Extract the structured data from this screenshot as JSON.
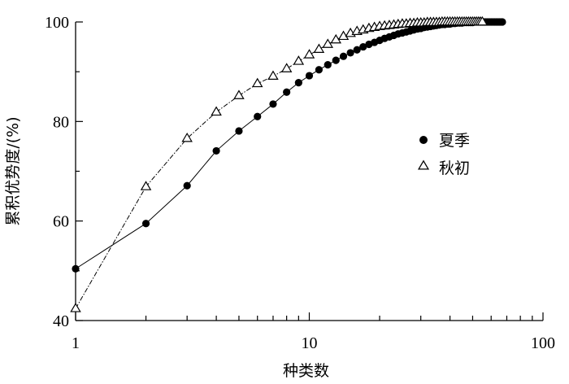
{
  "chart_data": {
    "type": "line",
    "xlabel": "种类数",
    "ylabel": "累积优势度/(%)",
    "xscale": "log",
    "xlim": [
      1,
      100
    ],
    "ylim": [
      40,
      100
    ],
    "x_ticks": [
      1,
      10,
      100
    ],
    "y_ticks": [
      40,
      60,
      80,
      100
    ],
    "grid": false,
    "legend_position": "right",
    "series": [
      {
        "name": "夏季",
        "marker": "filled-circle",
        "line_style": "solid",
        "color": "#000000",
        "x": [
          1,
          2,
          3,
          4,
          5,
          6,
          7,
          8,
          9,
          10,
          11,
          12,
          13,
          14,
          15,
          16,
          17,
          18,
          19,
          20,
          21,
          22,
          23,
          24,
          25,
          26,
          27,
          28,
          29,
          30,
          31,
          32,
          33,
          34,
          35,
          36,
          37,
          38,
          39,
          40,
          41,
          42,
          43,
          44,
          45,
          46,
          47,
          48,
          49,
          50,
          51,
          52,
          53,
          54,
          55,
          56,
          57,
          58,
          59,
          60,
          61,
          62,
          63,
          64,
          65,
          66,
          67
        ],
        "y": [
          50.4,
          59.5,
          67.1,
          74.1,
          78.1,
          81.0,
          83.5,
          85.9,
          87.8,
          89.2,
          90.4,
          91.4,
          92.3,
          93.1,
          93.8,
          94.4,
          95.0,
          95.5,
          95.9,
          96.3,
          96.7,
          97.0,
          97.3,
          97.6,
          97.8,
          98.0,
          98.2,
          98.4,
          98.6,
          98.7,
          98.9,
          99.0,
          99.1,
          99.2,
          99.3,
          99.4,
          99.5,
          99.5,
          99.6,
          99.6,
          99.7,
          99.7,
          99.8,
          99.8,
          99.8,
          99.9,
          99.9,
          99.9,
          99.9,
          99.9,
          100.0,
          100.0,
          100.0,
          100.0,
          100.0,
          100.0,
          100.0,
          100.0,
          100.0,
          100.0,
          100.0,
          100.0,
          100.0,
          100.0,
          100.0,
          100.0,
          100.0
        ]
      },
      {
        "name": "秋初",
        "marker": "open-triangle",
        "line_style": "dash-dot",
        "color": "#000000",
        "x": [
          1,
          2,
          3,
          4,
          5,
          6,
          7,
          8,
          9,
          10,
          11,
          12,
          13,
          14,
          15,
          16,
          17,
          18,
          19,
          20,
          21,
          22,
          23,
          24,
          25,
          26,
          27,
          28,
          29,
          30,
          31,
          32,
          33,
          34,
          35,
          36,
          37,
          38,
          39,
          40,
          41,
          42,
          43,
          44,
          45,
          46,
          47,
          48,
          49,
          50,
          51,
          52,
          53,
          54,
          55
        ],
        "y": [
          42.4,
          66.9,
          76.6,
          81.9,
          85.2,
          87.6,
          89.1,
          90.6,
          92.1,
          93.4,
          94.5,
          95.5,
          96.4,
          97.1,
          97.7,
          98.1,
          98.4,
          98.7,
          98.9,
          99.1,
          99.2,
          99.3,
          99.4,
          99.5,
          99.6,
          99.6,
          99.7,
          99.7,
          99.8,
          99.8,
          99.8,
          99.9,
          99.9,
          99.9,
          99.9,
          99.9,
          100.0,
          100.0,
          100.0,
          100.0,
          100.0,
          100.0,
          100.0,
          100.0,
          100.0,
          100.0,
          100.0,
          100.0,
          100.0,
          100.0,
          100.0,
          100.0,
          100.0,
          100.0,
          100.0
        ]
      }
    ]
  }
}
